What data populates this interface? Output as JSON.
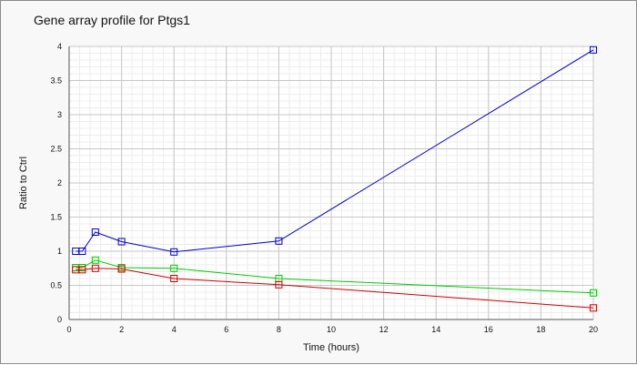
{
  "chart_data": {
    "type": "line",
    "title": "Gene array profile for Ptgs1",
    "xlabel": "Time (hours)",
    "ylabel": "Ratio to Ctrl",
    "xlim": [
      0,
      20
    ],
    "ylim": [
      0,
      4
    ],
    "x_ticks": [
      0,
      2,
      4,
      6,
      8,
      10,
      12,
      14,
      16,
      18,
      20
    ],
    "y_ticks": [
      0,
      0.5,
      1,
      1.5,
      2,
      2.5,
      3,
      3.5,
      4
    ],
    "grid": true,
    "minor_grid": true,
    "legend": "none",
    "marker": "square",
    "series": [
      {
        "color": "#0000cc",
        "x": [
          0.25,
          0.5,
          1,
          2,
          4,
          8,
          20
        ],
        "y": [
          1.0,
          1.0,
          1.28,
          1.14,
          0.99,
          1.15,
          3.95
        ]
      },
      {
        "color": "#00cc00",
        "x": [
          0.25,
          0.5,
          1,
          2,
          4,
          8,
          20
        ],
        "y": [
          0.76,
          0.76,
          0.87,
          0.76,
          0.75,
          0.6,
          0.39
        ]
      },
      {
        "color": "#cc0000",
        "x": [
          0.25,
          0.5,
          1,
          2,
          4,
          8,
          20
        ],
        "y": [
          0.73,
          0.73,
          0.75,
          0.74,
          0.6,
          0.51,
          0.17
        ]
      }
    ]
  }
}
